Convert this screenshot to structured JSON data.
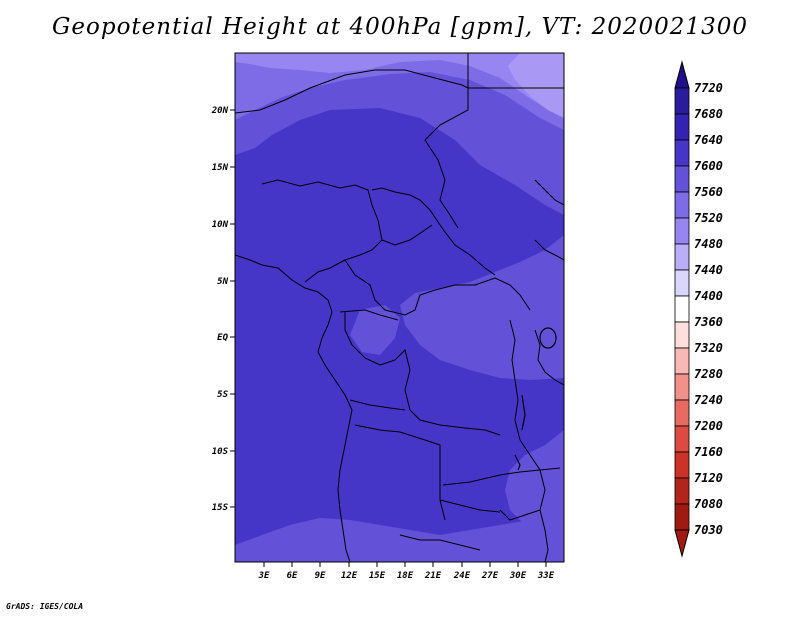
{
  "title": "Geopotential Height at 400hPa [gpm], VT: 2020021300",
  "credit": "GrADS: IGES/COLA",
  "map": {
    "region": "Central Africa",
    "lat_labels": [
      "20N",
      "15N",
      "10N",
      "5N",
      "EQ",
      "5S",
      "10S",
      "15S"
    ],
    "lon_labels": [
      "3E",
      "6E",
      "9E",
      "12E",
      "15E",
      "18E",
      "21E",
      "24E",
      "27E",
      "30E",
      "33E"
    ],
    "fill_colors": {
      "dominant": "#4536c8",
      "mid": "#6352d8",
      "light": "#7d6ce6",
      "lighter": "#9786f1"
    }
  },
  "colorbar": {
    "labels": [
      "7720",
      "7680",
      "7640",
      "7600",
      "7560",
      "7520",
      "7480",
      "7440",
      "7400",
      "7360",
      "7320",
      "7280",
      "7240",
      "7200",
      "7160",
      "7120",
      "7080",
      "7030"
    ],
    "colors": [
      "#200f8a",
      "#2b1c9e",
      "#3423b2",
      "#4536c8",
      "#6352d8",
      "#7d6ce6",
      "#9786f1",
      "#b9aef7",
      "#dad5fb",
      "#ffffff",
      "#fde0dd",
      "#f8b9b2",
      "#f19189",
      "#e86b62",
      "#dd4a41",
      "#cc3328",
      "#b3241b",
      "#a11a12"
    ]
  }
}
